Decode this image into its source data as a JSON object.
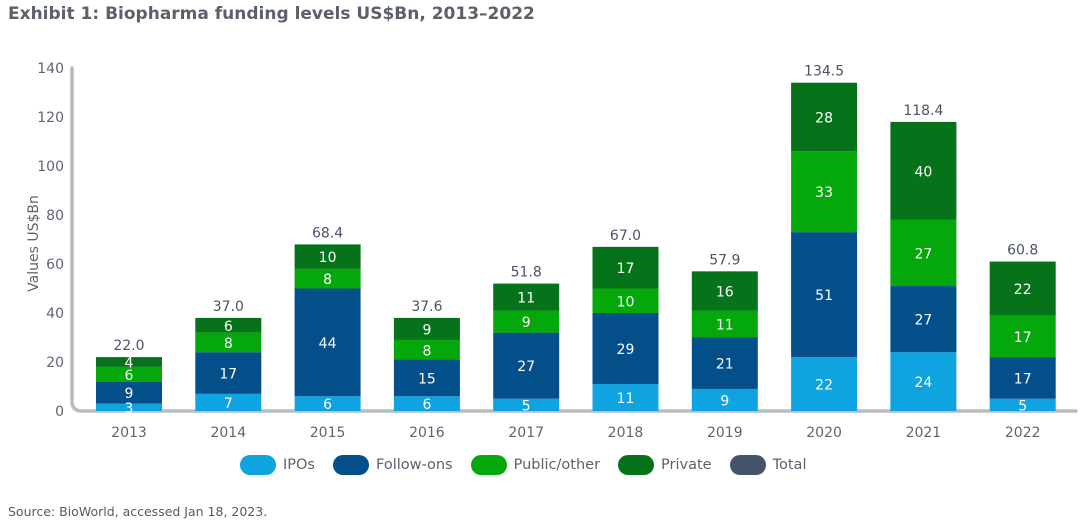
{
  "header": {
    "title": "Exhibit 1: Biopharma funding levels US$Bn, 2013–2022"
  },
  "footer": {
    "source": "Source: BioWorld, accessed Jan 18, 2023."
  },
  "chart_data": {
    "type": "bar",
    "stacked": true,
    "title": "Exhibit 1: Biopharma funding levels US$Bn, 2013–2022",
    "xlabel": "",
    "ylabel": "Values US$Bn",
    "ylim": [
      0,
      140
    ],
    "yticks": [
      0,
      20,
      40,
      60,
      80,
      100,
      120,
      140
    ],
    "grid": false,
    "legend_position": "bottom-center",
    "categories": [
      "2013",
      "2014",
      "2015",
      "2016",
      "2017",
      "2018",
      "2019",
      "2020",
      "2021",
      "2022"
    ],
    "series": [
      {
        "name": "IPOs",
        "color": "#0fa3e0",
        "values": [
          3,
          7,
          6,
          6,
          5,
          11,
          9,
          22,
          24,
          5
        ]
      },
      {
        "name": "Follow-ons",
        "color": "#024f8a",
        "values": [
          9,
          17,
          44,
          15,
          27,
          29,
          21,
          51,
          27,
          17
        ]
      },
      {
        "name": "Public/other",
        "color": "#05a80b",
        "values": [
          6,
          8,
          8,
          8,
          9,
          10,
          11,
          33,
          27,
          17
        ]
      },
      {
        "name": "Private",
        "color": "#06731a",
        "values": [
          4,
          6,
          10,
          9,
          11,
          17,
          16,
          28,
          40,
          22
        ]
      }
    ],
    "totals": {
      "name": "Total",
      "color": "#445468",
      "values": [
        "22.0",
        "37.0",
        "68.4",
        "37.6",
        "51.8",
        "67.0",
        "57.9",
        "134.5",
        "118.4",
        "60.8"
      ]
    }
  }
}
